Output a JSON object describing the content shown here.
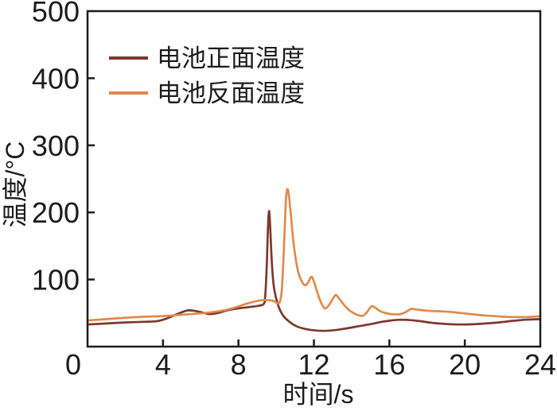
{
  "chart_data": {
    "type": "line",
    "title": "",
    "xlabel": "时间/s",
    "ylabel": "温度/°C",
    "xlim": [
      0,
      24
    ],
    "ylim": [
      0,
      500
    ],
    "xticks": [
      0,
      4,
      8,
      12,
      16,
      20,
      24
    ],
    "yticks": [
      100,
      200,
      300,
      400,
      500
    ],
    "grid": false,
    "legend_position": "top-left-inside",
    "frame_color": "#1c1c1c",
    "series": [
      {
        "name": "电池正面温度",
        "color": "#7d382d",
        "points": [
          [
            0,
            33
          ],
          [
            1,
            34.5
          ],
          [
            2,
            36
          ],
          [
            3,
            37
          ],
          [
            3.7,
            38
          ],
          [
            4.2,
            42
          ],
          [
            4.8,
            49
          ],
          [
            5.35,
            54
          ],
          [
            5.9,
            52
          ],
          [
            6.45,
            48.5
          ],
          [
            6.9,
            50
          ],
          [
            7.4,
            54
          ],
          [
            8,
            57
          ],
          [
            8.6,
            59
          ],
          [
            9.1,
            61
          ],
          [
            9.35,
            64
          ],
          [
            9.42,
            75
          ],
          [
            9.5,
            120
          ],
          [
            9.56,
            175
          ],
          [
            9.62,
            202
          ],
          [
            9.68,
            180
          ],
          [
            9.78,
            120
          ],
          [
            9.9,
            85
          ],
          [
            10.1,
            62
          ],
          [
            10.35,
            47
          ],
          [
            10.7,
            37
          ],
          [
            11.1,
            30
          ],
          [
            11.6,
            26
          ],
          [
            12.1,
            24
          ],
          [
            12.6,
            23.5
          ],
          [
            13.1,
            24.5
          ],
          [
            13.6,
            26.5
          ],
          [
            14.1,
            29
          ],
          [
            14.6,
            31.5
          ],
          [
            15.1,
            34
          ],
          [
            15.6,
            37
          ],
          [
            16.1,
            39
          ],
          [
            16.6,
            40
          ],
          [
            17.1,
            39.5
          ],
          [
            17.6,
            38
          ],
          [
            18.1,
            36
          ],
          [
            18.6,
            34.5
          ],
          [
            19.1,
            33.5
          ],
          [
            19.6,
            33
          ],
          [
            20.1,
            33
          ],
          [
            20.6,
            33.5
          ],
          [
            21.1,
            34.5
          ],
          [
            21.6,
            35.5
          ],
          [
            22.1,
            37
          ],
          [
            22.6,
            38.5
          ],
          [
            23.2,
            40
          ],
          [
            24,
            41
          ]
        ]
      },
      {
        "name": "电池反面温度",
        "color": "#e08a4d",
        "points": [
          [
            0,
            39
          ],
          [
            1,
            41
          ],
          [
            2,
            43
          ],
          [
            3,
            44.5
          ],
          [
            4,
            45.5
          ],
          [
            5,
            47.5
          ],
          [
            6,
            49.5
          ],
          [
            6.8,
            52
          ],
          [
            7.4,
            55
          ],
          [
            8,
            60
          ],
          [
            8.5,
            64.5
          ],
          [
            9,
            68
          ],
          [
            9.4,
            69.5
          ],
          [
            9.8,
            68.5
          ],
          [
            10.05,
            65
          ],
          [
            10.2,
            67
          ],
          [
            10.3,
            85
          ],
          [
            10.4,
            140
          ],
          [
            10.5,
            210
          ],
          [
            10.57,
            233
          ],
          [
            10.65,
            230
          ],
          [
            10.75,
            205
          ],
          [
            10.9,
            160
          ],
          [
            11.05,
            128
          ],
          [
            11.2,
            108
          ],
          [
            11.4,
            95
          ],
          [
            11.55,
            91.5
          ],
          [
            11.7,
            96
          ],
          [
            11.85,
            104
          ],
          [
            11.95,
            101
          ],
          [
            12.1,
            88
          ],
          [
            12.3,
            71
          ],
          [
            12.5,
            59
          ],
          [
            12.62,
            57
          ],
          [
            12.8,
            62
          ],
          [
            13,
            71
          ],
          [
            13.15,
            77
          ],
          [
            13.3,
            73
          ],
          [
            13.55,
            64
          ],
          [
            13.8,
            56
          ],
          [
            14.1,
            50
          ],
          [
            14.4,
            46.5
          ],
          [
            14.6,
            46
          ],
          [
            14.8,
            51
          ],
          [
            15.05,
            60
          ],
          [
            15.25,
            58
          ],
          [
            15.5,
            53
          ],
          [
            15.8,
            50
          ],
          [
            16.1,
            48.5
          ],
          [
            16.5,
            48
          ],
          [
            16.8,
            50.5
          ],
          [
            17.15,
            56
          ],
          [
            17.4,
            55.5
          ],
          [
            17.8,
            54
          ],
          [
            18.3,
            53
          ],
          [
            18.8,
            52.5
          ],
          [
            19.3,
            51.5
          ],
          [
            19.8,
            50
          ],
          [
            20.3,
            48.5
          ],
          [
            20.8,
            47
          ],
          [
            21.3,
            46
          ],
          [
            21.8,
            45
          ],
          [
            22.3,
            44.3
          ],
          [
            22.8,
            44
          ],
          [
            23.4,
            44.2
          ],
          [
            24,
            45.5
          ]
        ]
      }
    ]
  }
}
